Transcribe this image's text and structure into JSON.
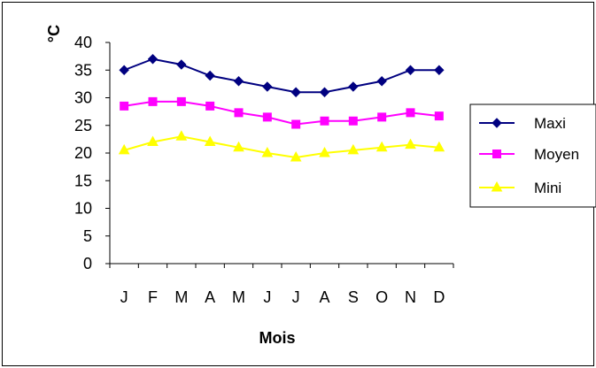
{
  "chart_data": {
    "type": "line",
    "ylabel": "°C",
    "xlabel": "Mois",
    "categories": [
      "J",
      "F",
      "M",
      "A",
      "M",
      "J",
      "J",
      "A",
      "S",
      "O",
      "N",
      "D"
    ],
    "ylim": [
      0,
      40
    ],
    "yticks": [
      0,
      5,
      10,
      15,
      20,
      25,
      30,
      35,
      40
    ],
    "grid": false,
    "legend": "right",
    "series": [
      {
        "name": "Maxi",
        "color": "#000080",
        "marker": "diamond",
        "values": [
          35,
          37,
          36,
          34,
          33,
          32,
          31,
          31,
          32,
          33,
          35,
          35
        ]
      },
      {
        "name": "Moyen",
        "color": "#FF00FF",
        "marker": "square",
        "values": [
          28.5,
          29.3,
          29.3,
          28.5,
          27.3,
          26.5,
          25.2,
          25.8,
          25.8,
          26.5,
          27.3,
          26.7
        ]
      },
      {
        "name": "Mini",
        "color": "#FFFF00",
        "marker": "triangle",
        "values": [
          20.5,
          22,
          23,
          22,
          21,
          20,
          19.2,
          20,
          20.5,
          21,
          21.5,
          21
        ]
      }
    ]
  }
}
